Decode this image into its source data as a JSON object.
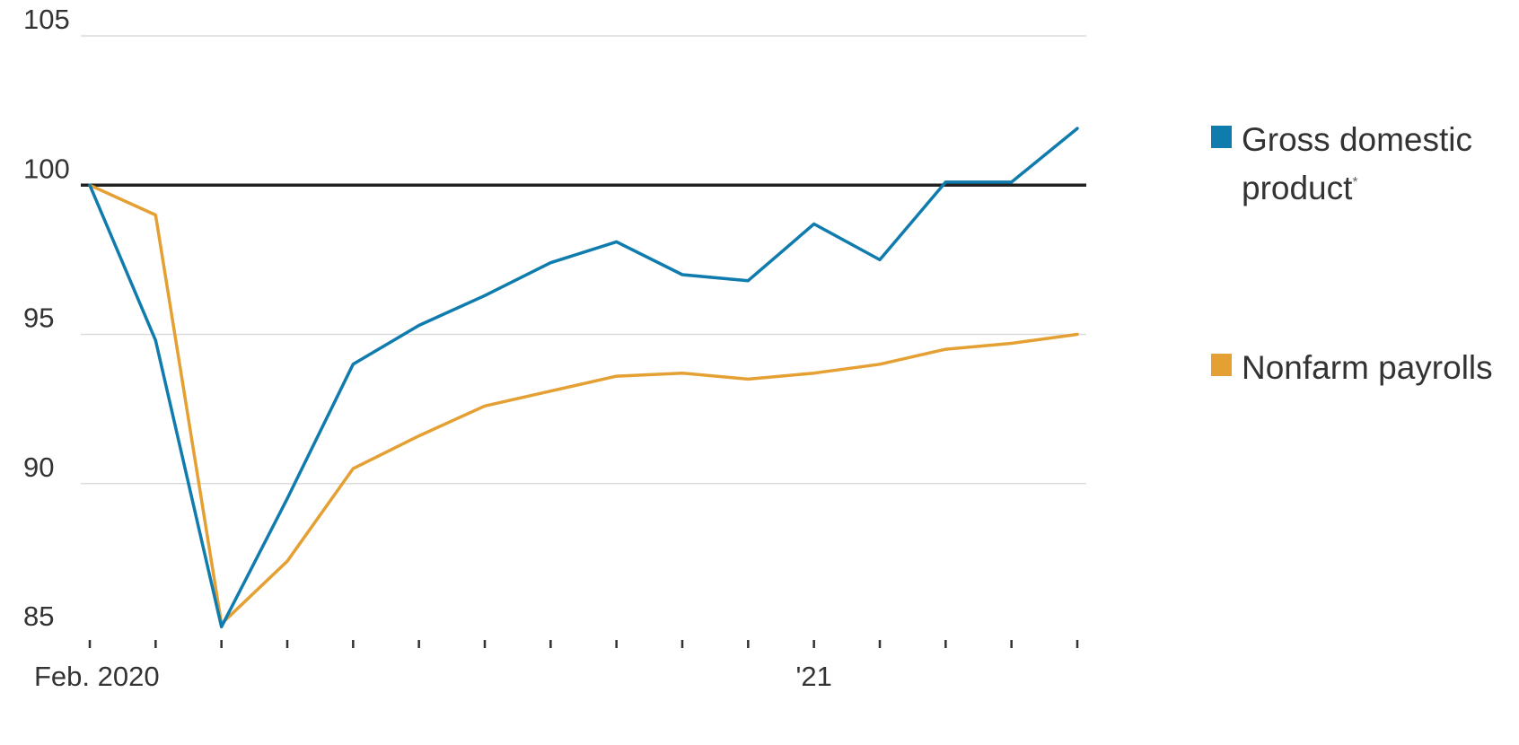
{
  "chart_data": {
    "type": "line",
    "y_ticks": [
      85,
      90,
      95,
      100,
      105
    ],
    "y_tick_labels": [
      "85",
      "90",
      "95",
      "100",
      "105"
    ],
    "ylim": [
      85,
      105
    ],
    "x_tick_labels": [
      {
        "x": "2020-02",
        "label": "Feb. 2020"
      },
      {
        "x": "2021-01",
        "label": "'21"
      }
    ],
    "x": [
      "2020-02",
      "2020-03",
      "2020-04",
      "2020-05",
      "2020-06",
      "2020-07",
      "2020-08",
      "2020-09",
      "2020-10",
      "2020-11",
      "2020-12",
      "2021-01",
      "2021-02",
      "2021-03",
      "2021-04",
      "2021-05"
    ],
    "reference_line": 100,
    "series": [
      {
        "name": "Gross domestic product",
        "footnote_marker": "*",
        "color": "#0f7cad",
        "values": [
          100.0,
          94.8,
          85.2,
          89.5,
          94.0,
          95.3,
          96.3,
          97.4,
          98.1,
          97.0,
          96.8,
          98.7,
          97.5,
          100.1,
          100.1,
          101.9
        ]
      },
      {
        "name": "Nonfarm payrolls",
        "color": "#e4a032",
        "values": [
          100.0,
          99.0,
          85.3,
          87.4,
          90.5,
          91.6,
          92.6,
          93.1,
          93.6,
          93.7,
          93.5,
          93.7,
          94.0,
          94.5,
          94.7,
          95.0
        ]
      }
    ],
    "legend_position": "right",
    "grid": true
  }
}
